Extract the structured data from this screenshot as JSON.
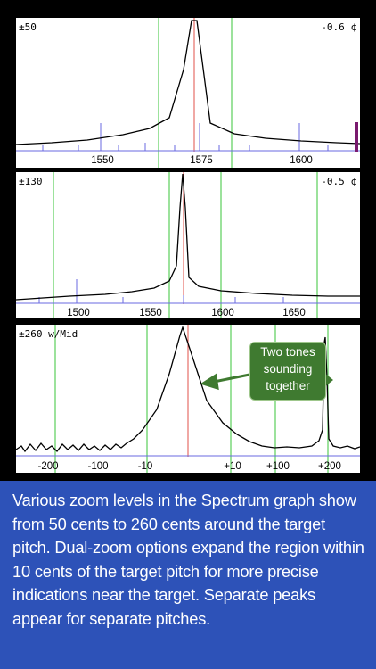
{
  "panels": [
    {
      "label_left": "±50",
      "label_right": "-0.6 ¢",
      "x_ticks": [
        "1550",
        "1575",
        "1600"
      ]
    },
    {
      "label_left": "±130",
      "label_right": "-0.5 ¢",
      "x_ticks": [
        "1500",
        "1550",
        "1600",
        "1650"
      ]
    },
    {
      "label_left": "±260 w/Mid",
      "label_right": "",
      "x_ticks": [
        "-200",
        "-100",
        "-10",
        "+10",
        "+100",
        "+200"
      ]
    }
  ],
  "callout": {
    "text": "Two tones sounding together"
  },
  "caption": {
    "text": "Various zoom levels in the Spectrum graph show from 50 cents to 260 cents around the target pitch.  Dual-zoom options expand the region within 10 cents of the target pitch for more precise indications near the target. Separate peaks appear for separate pitches."
  },
  "colors": {
    "background": "#000000",
    "panel": "#ffffff",
    "grid_green": "#7cd87c",
    "target_red": "#e0504a",
    "marker_blue": "#6a6ae0",
    "indicator_purple": "#7a1a6e",
    "callout_green": "#3f7a30",
    "caption_blue": "#2d52b8"
  }
}
